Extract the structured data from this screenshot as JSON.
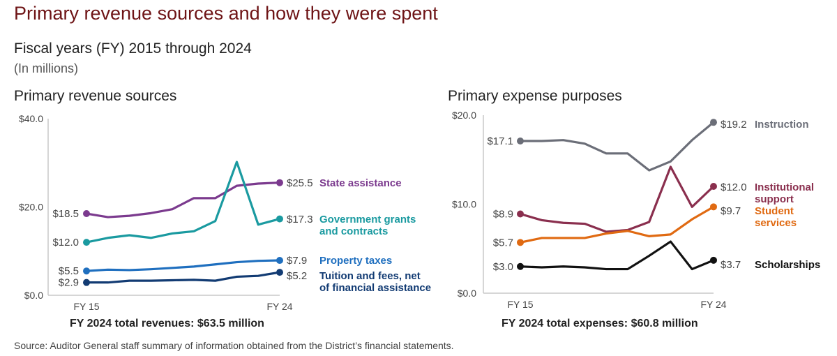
{
  "title": "Primary revenue sources and how they were spent",
  "subtitle": "Fiscal years (FY) 2015 through 2024",
  "units": "(In millions)",
  "source": "Source: Auditor General staff summary of information obtained from the District’s financial statements.",
  "chart_data": [
    {
      "type": "line",
      "title": "Primary revenue sources",
      "x": [
        "FY 15",
        "FY 16",
        "FY 17",
        "FY 18",
        "FY 19",
        "FY 20",
        "FY 21",
        "FY 22",
        "FY 23",
        "FY 24"
      ],
      "xtick_labels": [
        "FY 15",
        "FY 24"
      ],
      "ylim": [
        0,
        40
      ],
      "yticks": [
        0,
        20,
        40
      ],
      "ytick_labels": [
        "$0.0",
        "$20.0",
        "$40.0"
      ],
      "xlabel": "",
      "ylabel": "",
      "grid": false,
      "footer": "FY 2024 total revenues: $63.5 million",
      "series": [
        {
          "name": "State assistance",
          "label_lines": [
            "State assistance"
          ],
          "color": "#7b3a8e",
          "start_label": "$18.5",
          "end_label": "$25.5",
          "values": [
            18.5,
            17.7,
            18.0,
            18.6,
            19.5,
            22.0,
            22.0,
            24.8,
            25.3,
            25.5
          ]
        },
        {
          "name": "Government grants and contracts",
          "label_lines": [
            "Government grants",
            "and contracts"
          ],
          "color": "#1a9aa0",
          "start_label": "$12.0",
          "end_label": "$17.3",
          "values": [
            12.0,
            13.0,
            13.6,
            13.0,
            14.0,
            14.5,
            16.8,
            30.2,
            16.0,
            17.3
          ]
        },
        {
          "name": "Property taxes",
          "label_lines": [
            "Property taxes"
          ],
          "color": "#1f6fbf",
          "start_label": "$5.5",
          "end_label": "$7.9",
          "values": [
            5.5,
            5.8,
            5.7,
            5.9,
            6.2,
            6.5,
            7.0,
            7.5,
            7.8,
            7.9
          ]
        },
        {
          "name": "Tuition and fees, net of financial assistance",
          "label_lines": [
            "Tuition and fees, net",
            "of financial assistance"
          ],
          "color": "#123b73",
          "start_label": "$2.9",
          "end_label": "$5.2",
          "values": [
            2.9,
            2.9,
            3.3,
            3.3,
            3.4,
            3.5,
            3.3,
            4.2,
            4.4,
            5.2
          ]
        }
      ]
    },
    {
      "type": "line",
      "title": "Primary expense purposes",
      "x": [
        "FY 15",
        "FY 16",
        "FY 17",
        "FY 18",
        "FY 19",
        "FY 20",
        "FY 21",
        "FY 22",
        "FY 23",
        "FY 24"
      ],
      "xtick_labels": [
        "FY 15",
        "FY 24"
      ],
      "ylim": [
        0,
        20
      ],
      "yticks": [
        0,
        10,
        20
      ],
      "ytick_labels": [
        "$0.0",
        "$10.0",
        "$20.0"
      ],
      "xlabel": "",
      "ylabel": "",
      "grid": false,
      "footer": "FY 2024 total expenses: $60.8 million",
      "series": [
        {
          "name": "Instruction",
          "label_lines": [
            "Instruction"
          ],
          "color": "#6b6e78",
          "start_label": "$17.1",
          "end_label": "$19.2",
          "values": [
            17.1,
            17.1,
            17.2,
            16.8,
            15.7,
            15.7,
            13.8,
            14.8,
            17.2,
            19.2
          ]
        },
        {
          "name": "Institutional support",
          "label_lines": [
            "Institutional",
            "support"
          ],
          "color": "#8a2f4e",
          "start_label": "$8.9",
          "end_label": "$12.0",
          "values": [
            8.9,
            8.2,
            7.9,
            7.8,
            6.9,
            7.1,
            8.0,
            14.2,
            9.7,
            12.0
          ]
        },
        {
          "name": "Student services",
          "label_lines": [
            "Student",
            "services"
          ],
          "color": "#e06a12",
          "start_label": "$5.7",
          "end_label": "$9.7",
          "values": [
            5.7,
            6.2,
            6.2,
            6.2,
            6.7,
            7.0,
            6.4,
            6.6,
            8.3,
            9.7
          ]
        },
        {
          "name": "Scholarships",
          "label_lines": [
            "Scholarships"
          ],
          "color": "#111111",
          "start_label": "$3.0",
          "end_label": "$3.7",
          "values": [
            3.0,
            2.9,
            3.0,
            2.9,
            2.7,
            2.7,
            4.2,
            5.8,
            2.7,
            3.7
          ]
        }
      ]
    }
  ]
}
